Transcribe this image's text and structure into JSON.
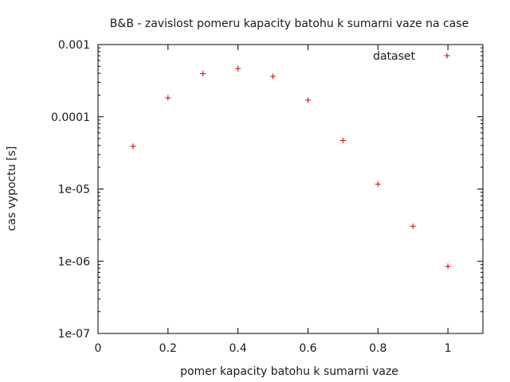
{
  "chart_data": {
    "type": "scatter",
    "title": "B&B - zavislost pomeru kapacity batohu k sumarni vaze na case",
    "xlabel": "pomer kapacity batohu k sumarni vaze",
    "ylabel": "cas vypoctu [s]",
    "xlim": [
      0,
      1.1
    ],
    "ylim": [
      1e-07,
      0.001
    ],
    "yscale": "log",
    "grid": false,
    "legend": "top-right",
    "x_ticks": [
      {
        "value": 0,
        "label": "0"
      },
      {
        "value": 0.2,
        "label": "0.2"
      },
      {
        "value": 0.4,
        "label": "0.4"
      },
      {
        "value": 0.6,
        "label": "0.6"
      },
      {
        "value": 0.8,
        "label": "0.8"
      },
      {
        "value": 1,
        "label": "1"
      }
    ],
    "y_ticks": [
      {
        "value": 0.001,
        "label": "0.001"
      },
      {
        "value": 0.0001,
        "label": "0.0001"
      },
      {
        "value": 1e-05,
        "label": "1e-05"
      },
      {
        "value": 1e-06,
        "label": "1e-06"
      },
      {
        "value": 1e-07,
        "label": "1e-07"
      }
    ],
    "series": [
      {
        "name": "dataset",
        "color": "#cc0000",
        "marker": "plus",
        "points": [
          {
            "x": 0.1,
            "y": 3.9e-05
          },
          {
            "x": 0.2,
            "y": 0.000183
          },
          {
            "x": 0.3,
            "y": 0.000395
          },
          {
            "x": 0.4,
            "y": 0.000465
          },
          {
            "x": 0.5,
            "y": 0.000363
          },
          {
            "x": 0.6,
            "y": 0.00017
          },
          {
            "x": 0.7,
            "y": 4.7e-05
          },
          {
            "x": 0.8,
            "y": 1.17e-05
          },
          {
            "x": 0.9,
            "y": 3.05e-06
          },
          {
            "x": 1.0,
            "y": 8.5e-07
          }
        ]
      }
    ]
  }
}
